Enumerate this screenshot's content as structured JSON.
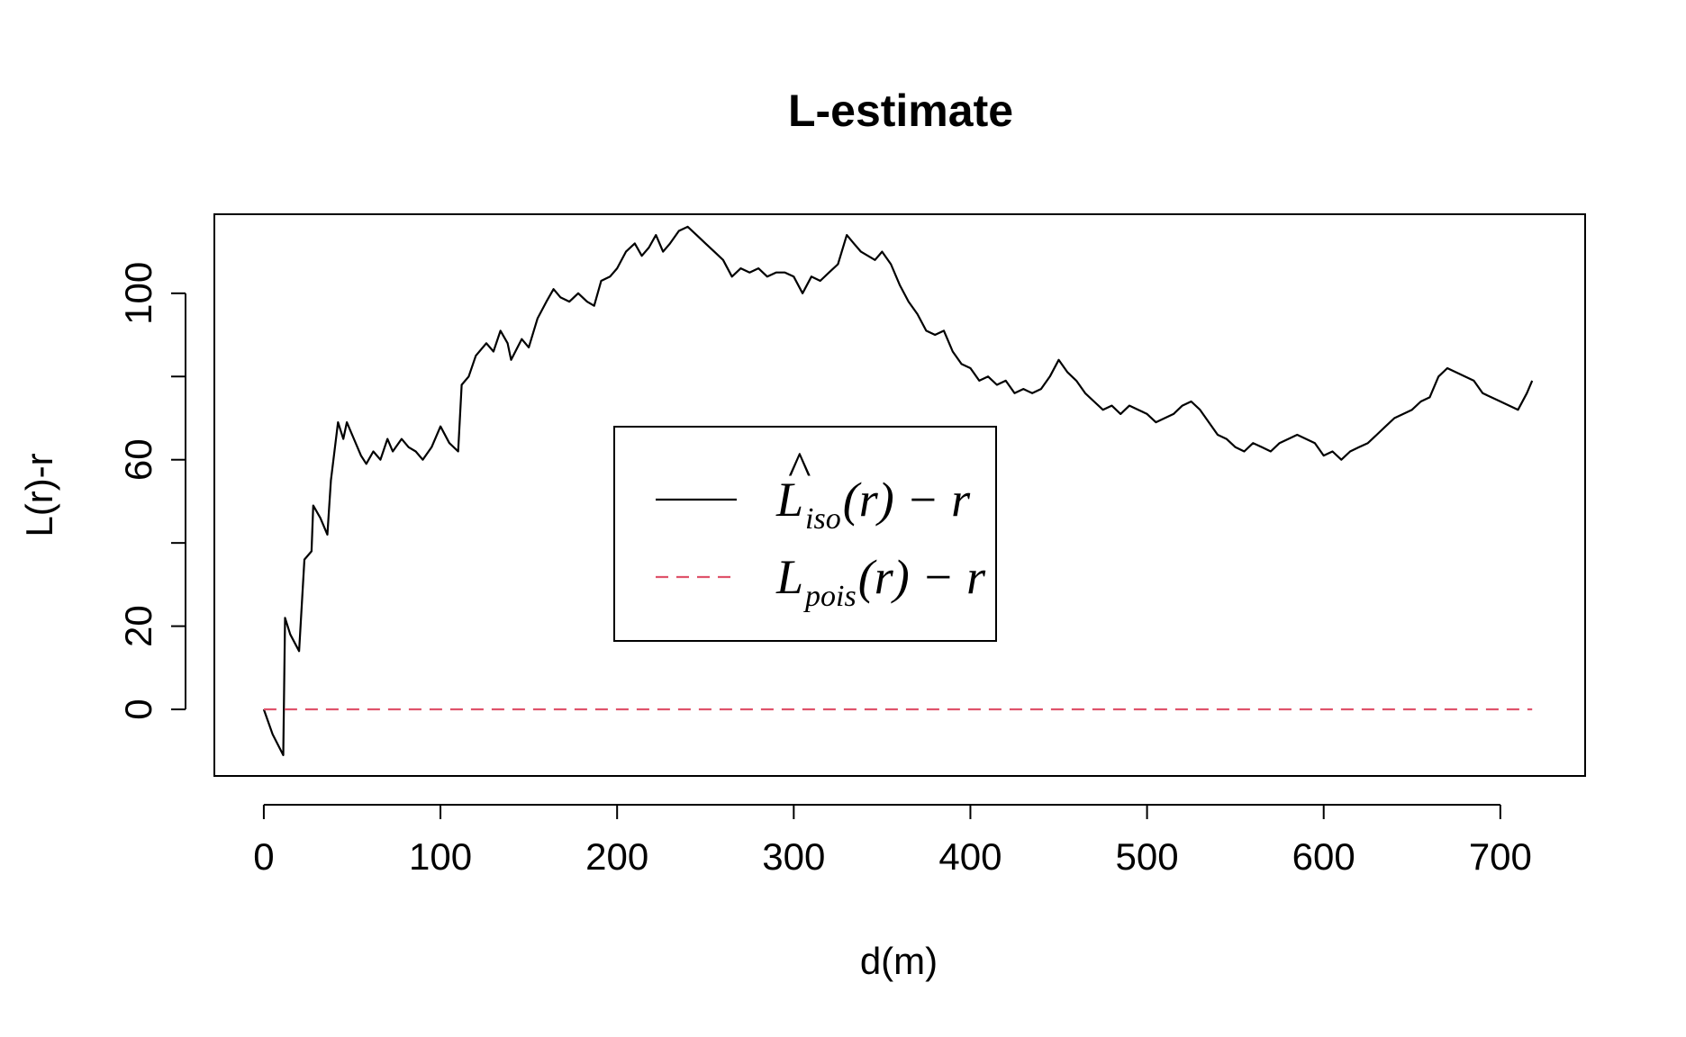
{
  "chart_data": {
    "type": "line",
    "title": "L-estimate",
    "xlabel": "d(m)",
    "ylabel": "L(r)-r",
    "xlim": [
      -28,
      748
    ],
    "ylim": [
      -16,
      119
    ],
    "x_ticks": [
      0,
      100,
      200,
      300,
      400,
      500,
      600,
      700
    ],
    "y_ticks": [
      0,
      20,
      40,
      60,
      80,
      100
    ],
    "y_tick_labels": [
      "0",
      "20",
      "",
      "60",
      "",
      "100"
    ],
    "grid": false,
    "legend_position": "center",
    "series": [
      {
        "key": "L_iso",
        "color": "#000000",
        "dash": "solid",
        "legend": {
          "base": "L",
          "hat": "^",
          "sub": "iso",
          "tail": "(r) − r"
        },
        "x": [
          0,
          5,
          11,
          12,
          15,
          20,
          23,
          27,
          28,
          32,
          36,
          38,
          42,
          45,
          47,
          50,
          55,
          58,
          62,
          66,
          70,
          73,
          78,
          82,
          86,
          90,
          95,
          100,
          105,
          110,
          112,
          116,
          120,
          126,
          130,
          134,
          138,
          140,
          146,
          150,
          155,
          160,
          164,
          168,
          173,
          178,
          183,
          187,
          191,
          196,
          200,
          205,
          210,
          214,
          218,
          222,
          226,
          230,
          235,
          240,
          245,
          250,
          255,
          260,
          265,
          270,
          275,
          280,
          285,
          290,
          295,
          300,
          305,
          310,
          315,
          320,
          325,
          330,
          334,
          338,
          342,
          346,
          350,
          355,
          360,
          365,
          370,
          375,
          380,
          385,
          390,
          395,
          400,
          405,
          410,
          415,
          420,
          425,
          430,
          435,
          440,
          445,
          450,
          455,
          460,
          465,
          470,
          475,
          480,
          485,
          490,
          495,
          500,
          505,
          510,
          515,
          520,
          525,
          530,
          535,
          540,
          545,
          550,
          555,
          560,
          565,
          570,
          575,
          580,
          585,
          590,
          595,
          600,
          605,
          610,
          615,
          620,
          625,
          630,
          635,
          640,
          645,
          650,
          655,
          660,
          665,
          670,
          675,
          680,
          685,
          690,
          695,
          700,
          705,
          710,
          715,
          718
        ],
        "y": [
          0,
          -6,
          -11,
          22,
          18,
          14,
          36,
          38,
          49,
          46,
          42,
          55,
          69,
          65,
          69,
          66,
          61,
          59,
          62,
          60,
          65,
          62,
          65,
          63,
          62,
          60,
          63,
          68,
          64,
          62,
          78,
          80,
          85,
          88,
          86,
          91,
          88,
          84,
          89,
          87,
          94,
          98,
          101,
          99,
          98,
          100,
          98,
          97,
          103,
          104,
          106,
          110,
          112,
          109,
          111,
          114,
          110,
          112,
          115,
          116,
          114,
          112,
          110,
          108,
          104,
          106,
          105,
          106,
          104,
          105,
          105,
          104,
          100,
          104,
          103,
          105,
          107,
          114,
          112,
          110,
          109,
          108,
          110,
          107,
          102,
          98,
          95,
          91,
          90,
          91,
          86,
          83,
          82,
          79,
          80,
          78,
          79,
          76,
          77,
          76,
          77,
          80,
          84,
          81,
          79,
          76,
          74,
          72,
          73,
          71,
          73,
          72,
          71,
          69,
          70,
          71,
          73,
          74,
          72,
          69,
          66,
          65,
          63,
          62,
          64,
          63,
          62,
          64,
          65,
          66,
          65,
          64,
          61,
          62,
          60,
          62,
          63,
          64,
          66,
          68,
          70,
          71,
          72,
          74,
          75,
          80,
          82,
          81,
          80,
          79,
          76,
          75,
          74,
          73,
          72,
          76,
          79
        ]
      },
      {
        "key": "L_pois",
        "color": "#DF536B",
        "dash": "dashed",
        "legend": {
          "base": "L",
          "hat": "",
          "sub": "pois",
          "tail": "(r) − r"
        },
        "x": [
          0,
          718
        ],
        "y": [
          0,
          0
        ]
      }
    ]
  }
}
